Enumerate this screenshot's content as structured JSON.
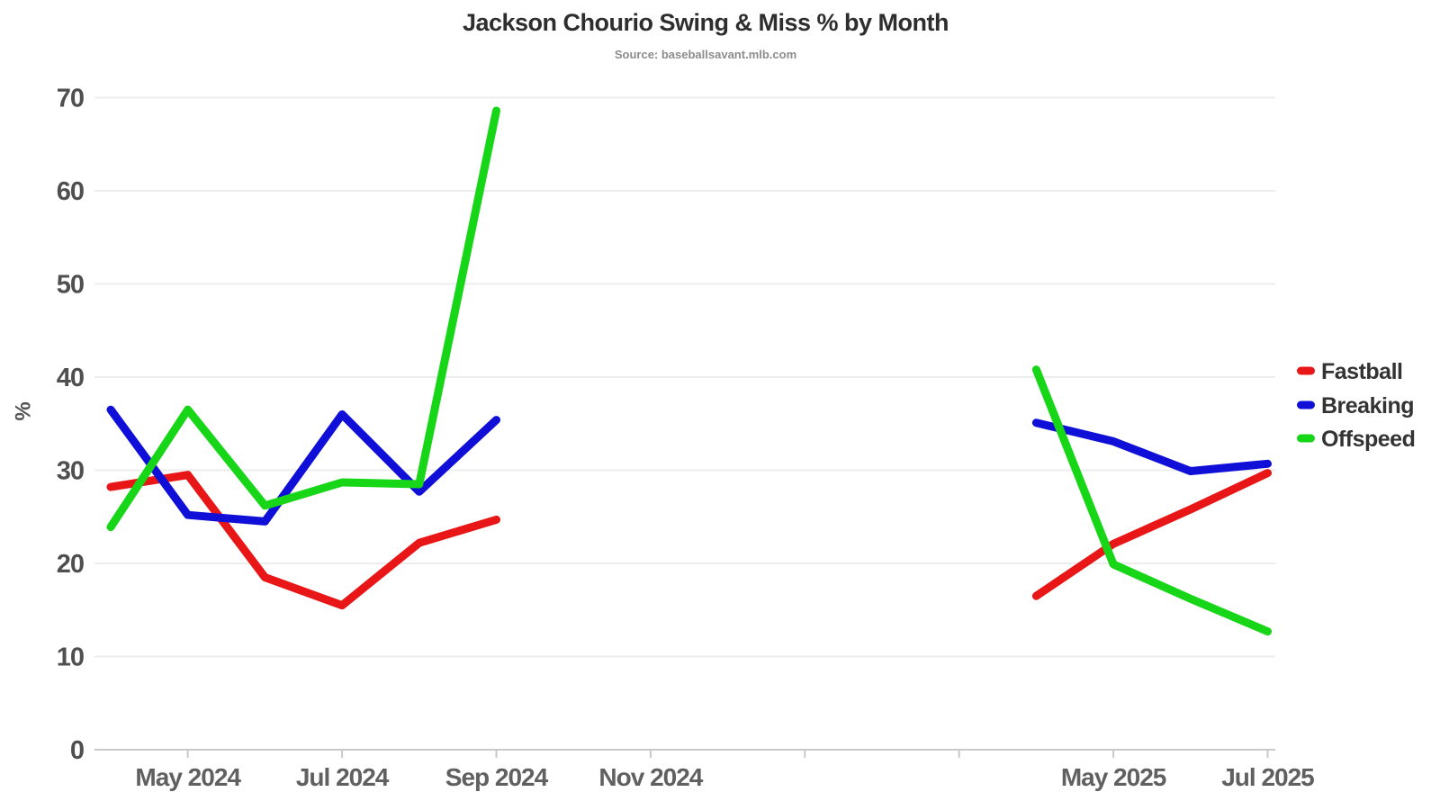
{
  "chart_data": {
    "type": "line",
    "title": "Jackson Chourio Swing & Miss % by Month",
    "subtitle": "Source: baseballsavant.mlb.com",
    "ylabel": "%",
    "ylim": [
      0,
      70
    ],
    "yticks": [
      0,
      10,
      20,
      30,
      40,
      50,
      60,
      70
    ],
    "grid": "horizontal-only",
    "legend_position": "right",
    "x_categories": [
      "Apr 2024",
      "May 2024",
      "Jun 2024",
      "Jul 2024",
      "Aug 2024",
      "Sep 2024",
      "Oct 2024",
      "Nov 2024",
      "Dec 2024",
      "Jan 2025",
      "Feb 2025",
      "Mar 2025",
      "Apr 2025",
      "May 2025",
      "Jun 2025",
      "Jul 2025"
    ],
    "xticks": [
      {
        "at": "May 2024",
        "label": "May 2024"
      },
      {
        "at": "Jul 2024",
        "label": "Jul 2024"
      },
      {
        "at": "Sep 2024",
        "label": "Sep 2024"
      },
      {
        "at": "Nov 2024",
        "label": "Nov 2024"
      },
      {
        "at": "Jan 2025",
        "label": ""
      },
      {
        "at": "Mar 2025",
        "label": ""
      },
      {
        "at": "May 2025",
        "label": "May 2025"
      },
      {
        "at": "Jul 2025",
        "label": "Jul 2025"
      }
    ],
    "series": [
      {
        "name": "Fastball",
        "color": "#e81616",
        "values": [
          28.2,
          29.5,
          18.5,
          15.5,
          22.2,
          24.7,
          null,
          null,
          null,
          null,
          null,
          null,
          16.5,
          22.1,
          25.8,
          29.7
        ]
      },
      {
        "name": "Breaking",
        "color": "#0f0fd8",
        "values": [
          36.5,
          25.2,
          24.5,
          36.0,
          27.7,
          35.4,
          null,
          null,
          null,
          null,
          null,
          null,
          35.1,
          33.1,
          29.9,
          30.7
        ]
      },
      {
        "name": "Offspeed",
        "color": "#17d617",
        "values": [
          23.9,
          36.5,
          26.2,
          28.7,
          28.5,
          68.6,
          null,
          null,
          null,
          null,
          null,
          null,
          40.8,
          19.9,
          16.2,
          12.7
        ]
      }
    ]
  }
}
